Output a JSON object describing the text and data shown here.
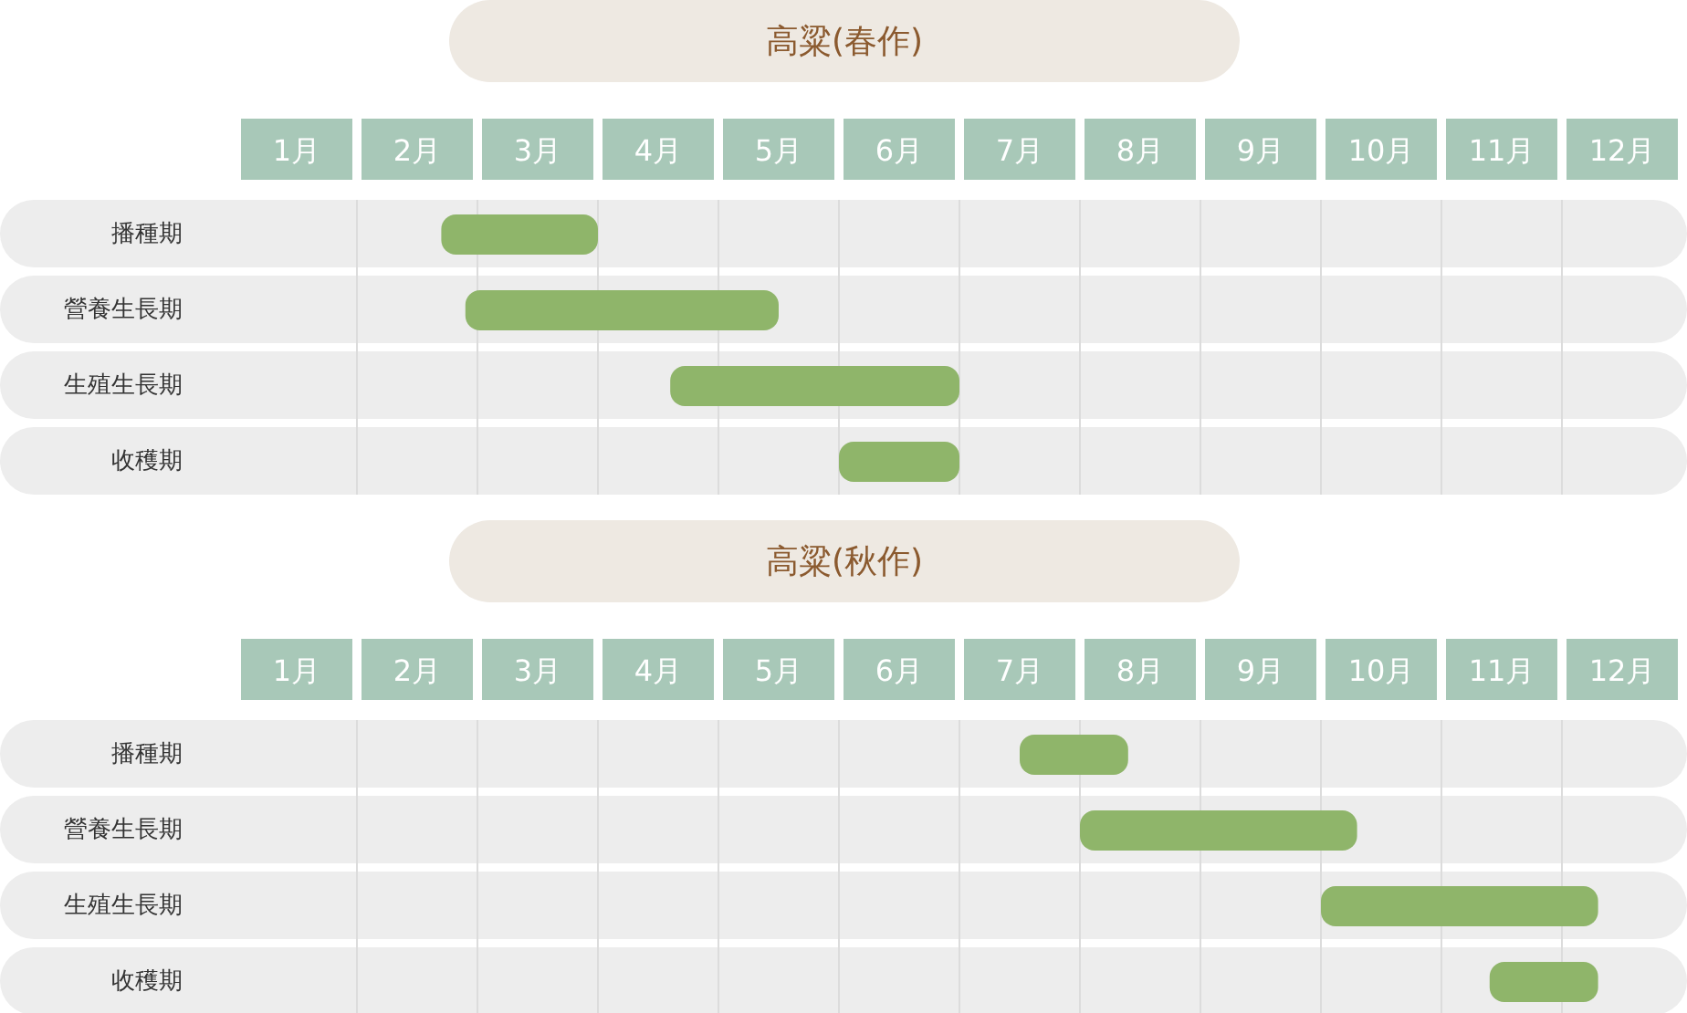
{
  "chart_data": [
    {
      "type": "bar",
      "orientation": "horizontal",
      "title": "高粱(春作)",
      "categories": [
        "播種期",
        "營養生長期",
        "生殖生長期",
        "收穫期"
      ],
      "base": [
        1.7,
        1.9,
        3.6,
        5
      ],
      "values": [
        1.3,
        2.6,
        2.4,
        1
      ],
      "color": "#8fb56a",
      "xlim": [
        0,
        12
      ],
      "xticks": [
        {
          "value": 0.5,
          "label": "1月"
        },
        {
          "value": 1.5,
          "label": "2月"
        },
        {
          "value": 2.5,
          "label": "3月"
        },
        {
          "value": 3.5,
          "label": "4月"
        },
        {
          "value": 4.5,
          "label": "5月"
        },
        {
          "value": 5.5,
          "label": "6月"
        },
        {
          "value": 6.5,
          "label": "7月"
        },
        {
          "value": 7.5,
          "label": "8月"
        },
        {
          "value": 8.5,
          "label": "9月"
        },
        {
          "value": 9.5,
          "label": "10月"
        },
        {
          "value": 10.5,
          "label": "11月"
        },
        {
          "value": 11.5,
          "label": "12月"
        }
      ],
      "grid": "x",
      "bands": [
        {
          "axis": "y",
          "from": "播種期",
          "to": "播種期",
          "color": "#ededed"
        },
        {
          "axis": "y",
          "from": "營養生長期",
          "to": "營養生長期",
          "color": "#ededed"
        },
        {
          "axis": "y",
          "from": "生殖生長期",
          "to": "生殖生長期",
          "color": "#ededed"
        },
        {
          "axis": "y",
          "from": "收穫期",
          "to": "收穫期",
          "color": "#ededed"
        }
      ]
    },
    {
      "type": "bar",
      "orientation": "horizontal",
      "title": "高粱(秋作)",
      "categories": [
        "播種期",
        "營養生長期",
        "生殖生長期",
        "收穫期"
      ],
      "base": [
        6.5,
        7,
        9,
        10.4
      ],
      "values": [
        0.9,
        2.3,
        2.3,
        0.9
      ],
      "color": "#8fb56a",
      "xlim": [
        0,
        12
      ],
      "xticks": [
        {
          "value": 0.5,
          "label": "1月"
        },
        {
          "value": 1.5,
          "label": "2月"
        },
        {
          "value": 2.5,
          "label": "3月"
        },
        {
          "value": 3.5,
          "label": "4月"
        },
        {
          "value": 4.5,
          "label": "5月"
        },
        {
          "value": 5.5,
          "label": "6月"
        },
        {
          "value": 6.5,
          "label": "7月"
        },
        {
          "value": 7.5,
          "label": "8月"
        },
        {
          "value": 8.5,
          "label": "9月"
        },
        {
          "value": 9.5,
          "label": "10月"
        },
        {
          "value": 10.5,
          "label": "11月"
        },
        {
          "value": 11.5,
          "label": "12月"
        }
      ],
      "grid": "x",
      "bands": [
        {
          "axis": "y",
          "from": "播種期",
          "to": "播種期",
          "color": "#ededed"
        },
        {
          "axis": "y",
          "from": "營養生長期",
          "to": "營養生長期",
          "color": "#ededed"
        },
        {
          "axis": "y",
          "from": "生殖生長期",
          "to": "生殖生長期",
          "color": "#ededed"
        },
        {
          "axis": "y",
          "from": "收穫期",
          "to": "收穫期",
          "color": "#ededed"
        }
      ]
    }
  ]
}
